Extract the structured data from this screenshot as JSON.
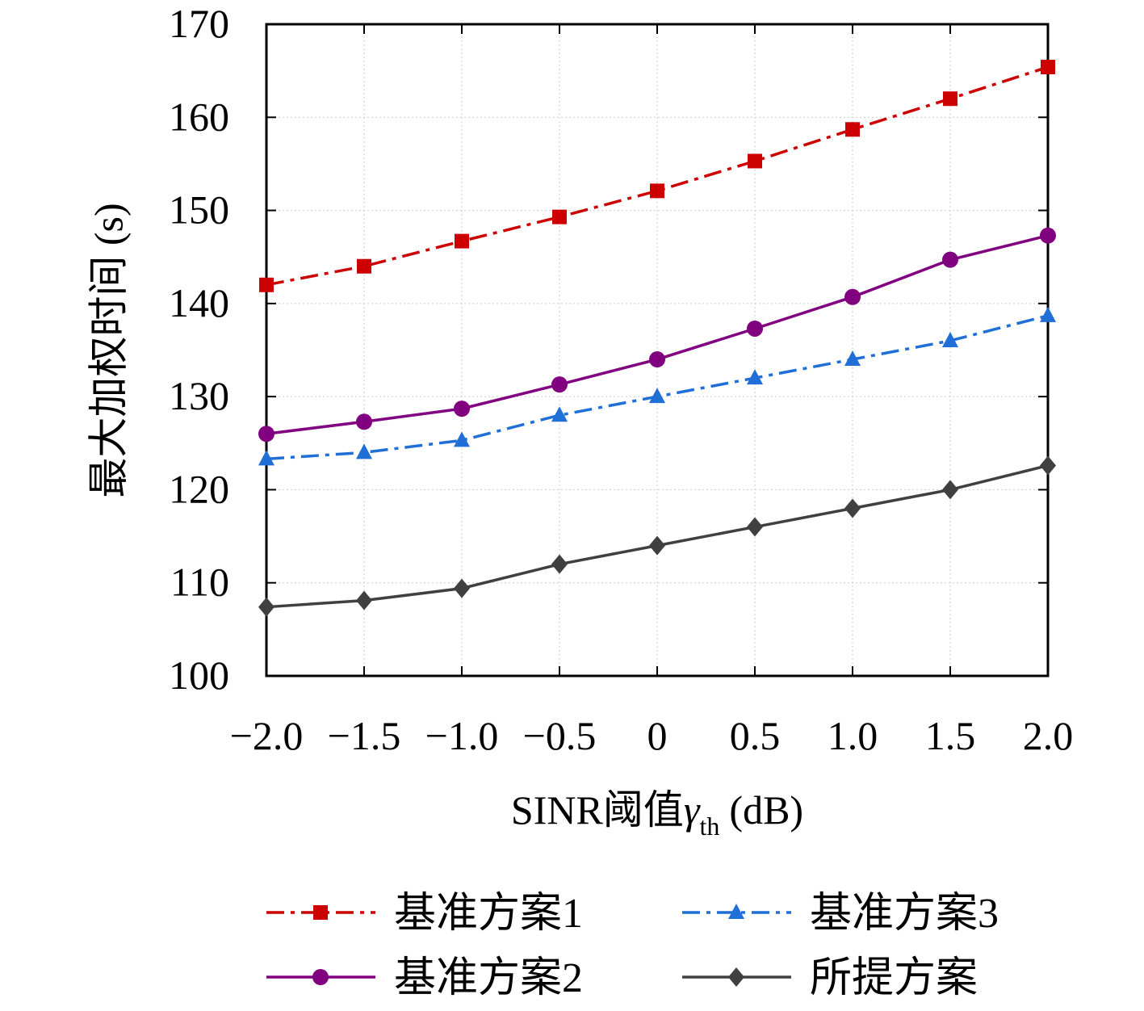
{
  "chart_data": {
    "type": "line",
    "ylabel": "最大加权时间 (s)",
    "xlabel": {
      "main": "SINR阈值",
      "symbol": "γ",
      "sub": "th",
      "unit": "(dB)"
    },
    "x": [
      -2.0,
      -1.5,
      -1.0,
      -0.5,
      0,
      0.5,
      1.0,
      1.5,
      2.0
    ],
    "xlim": [
      -2.0,
      2.0
    ],
    "xticks": [
      {
        "value": -2.0,
        "label": "−2.0"
      },
      {
        "value": -1.5,
        "label": "−1.5"
      },
      {
        "value": -1.0,
        "label": "−1.0"
      },
      {
        "value": -0.5,
        "label": "−0.5"
      },
      0,
      0.5,
      {
        "value": 1.0,
        "label": "1.0"
      },
      1.5,
      {
        "value": 2.0,
        "label": "2.0"
      }
    ],
    "ylim": [
      100,
      170
    ],
    "yticks": [
      100,
      110,
      120,
      130,
      140,
      150,
      160,
      170
    ],
    "grid": true,
    "legend": "bottom",
    "series": [
      {
        "name": "基准方案1",
        "color": "#cc0000",
        "dash": "dashdot",
        "marker": "square",
        "values": [
          142.0,
          144.0,
          146.7,
          149.3,
          152.1,
          155.3,
          158.7,
          162.0,
          165.4
        ]
      },
      {
        "name": "基准方案3",
        "color": "#1f6fd6",
        "dash": "dashdot",
        "marker": "triangle",
        "values": [
          123.3,
          124.0,
          125.3,
          128.0,
          130.0,
          132.0,
          134.0,
          136.0,
          138.7
        ]
      },
      {
        "name": "基准方案2",
        "color": "#800080",
        "dash": "solid",
        "marker": "circle",
        "values": [
          126.0,
          127.3,
          128.7,
          131.3,
          134.0,
          137.3,
          140.7,
          144.7,
          147.3
        ]
      },
      {
        "name": "所提方案",
        "color": "#404040",
        "dash": "solid",
        "marker": "diamond",
        "values": [
          107.4,
          108.1,
          109.4,
          112.0,
          114.0,
          116.0,
          118.0,
          120.0,
          122.6
        ]
      }
    ]
  }
}
